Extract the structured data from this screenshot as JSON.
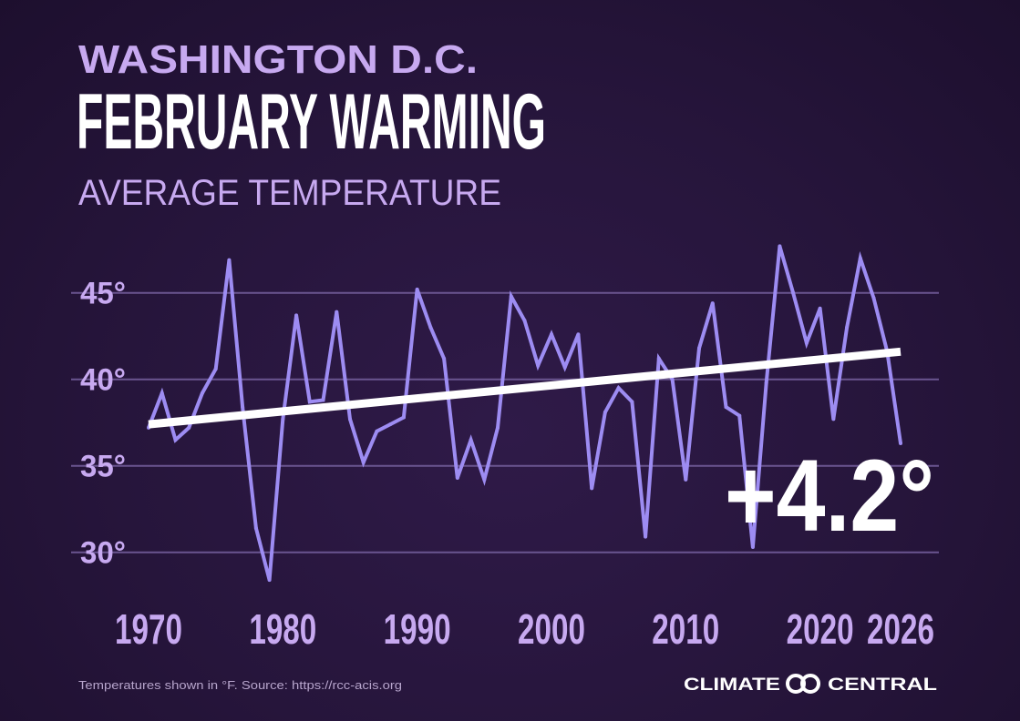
{
  "header": {
    "location": "WASHINGTON D.C.",
    "title": "FEBRUARY WARMING",
    "subtitle": "AVERAGE TEMPERATURE"
  },
  "chart_data": {
    "type": "line",
    "title": "FEBRUARY WARMING",
    "subtitle": "AVERAGE TEMPERATURE",
    "xlabel": "",
    "ylabel": "",
    "xlim": [
      1970,
      2026
    ],
    "ylim": [
      28,
      48
    ],
    "grid": true,
    "x_ticks": [
      1970,
      1980,
      1990,
      2000,
      2010,
      2020,
      2026
    ],
    "x_tick_labels": [
      "1970",
      "1980",
      "1990",
      "2000",
      "2010",
      "2020",
      "2026"
    ],
    "y_ticks": [
      30,
      35,
      40,
      45
    ],
    "y_tick_labels": [
      "30°",
      "35°",
      "40°",
      "45°"
    ],
    "series": [
      {
        "name": "Average February temperature",
        "color": "#9d8cf2",
        "x": [
          1970,
          1971,
          1972,
          1973,
          1974,
          1975,
          1976,
          1977,
          1978,
          1979,
          1980,
          1981,
          1982,
          1983,
          1984,
          1985,
          1986,
          1987,
          1988,
          1989,
          1990,
          1991,
          1992,
          1993,
          1994,
          1995,
          1996,
          1997,
          1998,
          1999,
          2000,
          2001,
          2002,
          2003,
          2004,
          2005,
          2006,
          2007,
          2008,
          2009,
          2010,
          2011,
          2012,
          2013,
          2014,
          2015,
          2016,
          2017,
          2018,
          2019,
          2020,
          2021,
          2022,
          2023,
          2024,
          2025,
          2026
        ],
        "values": [
          37.2,
          39.2,
          36.5,
          37.2,
          39.2,
          40.6,
          46.9,
          38.4,
          31.4,
          28.4,
          37.7,
          43.7,
          38.7,
          38.8,
          43.9,
          37.7,
          35.2,
          37.0,
          37.4,
          37.8,
          45.2,
          43.0,
          41.2,
          34.3,
          36.5,
          34.2,
          37.2,
          44.8,
          43.4,
          40.8,
          42.6,
          40.7,
          42.6,
          33.7,
          38.1,
          39.5,
          38.7,
          30.9,
          41.2,
          40.0,
          34.2,
          41.8,
          44.4,
          38.4,
          37.9,
          30.3,
          39.8,
          47.7,
          45.0,
          42.1,
          44.1,
          37.7,
          43.0,
          47.0,
          44.7,
          41.6,
          36.3
        ]
      },
      {
        "name": "Trend",
        "color": "#ffffff",
        "x": [
          1970,
          2026
        ],
        "values": [
          37.4,
          41.6
        ]
      }
    ],
    "annotations": [
      "+4.2°"
    ]
  },
  "footer": {
    "source": "Temperatures shown in °F. Source: https://rcc-acis.org",
    "logo_text_left": "CLIMATE",
    "logo_text_right": "CENTRAL"
  },
  "colors": {
    "background": "#26153b",
    "accent": "#c7a9f0",
    "line": "#9d8cf2",
    "trend": "#ffffff",
    "grid": "#6a5590"
  }
}
